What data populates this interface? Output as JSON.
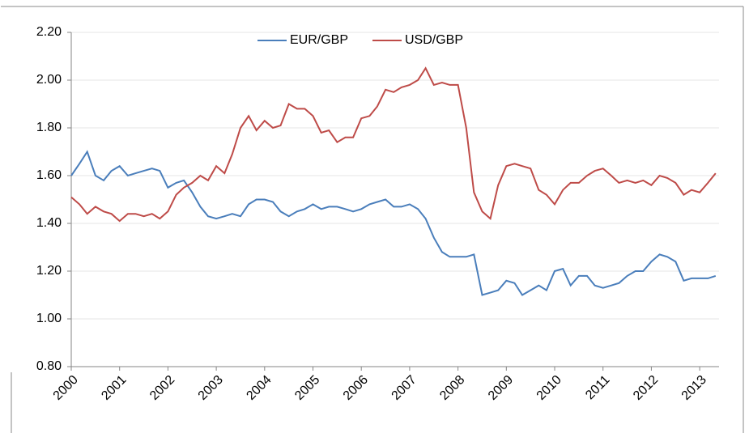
{
  "chart_data": {
    "type": "line",
    "x": [
      2000,
      2000.17,
      2000.33,
      2000.5,
      2000.67,
      2000.83,
      2001,
      2001.17,
      2001.33,
      2001.5,
      2001.67,
      2001.83,
      2002,
      2002.17,
      2002.33,
      2002.5,
      2002.67,
      2002.83,
      2003,
      2003.17,
      2003.33,
      2003.5,
      2003.67,
      2003.83,
      2004,
      2004.17,
      2004.33,
      2004.5,
      2004.67,
      2004.83,
      2005,
      2005.17,
      2005.33,
      2005.5,
      2005.67,
      2005.83,
      2006,
      2006.17,
      2006.33,
      2006.5,
      2006.67,
      2006.83,
      2007,
      2007.17,
      2007.33,
      2007.5,
      2007.67,
      2007.83,
      2008,
      2008.17,
      2008.33,
      2008.5,
      2008.67,
      2008.83,
      2009,
      2009.17,
      2009.33,
      2009.5,
      2009.67,
      2009.83,
      2010,
      2010.17,
      2010.33,
      2010.5,
      2010.67,
      2010.83,
      2011,
      2011.17,
      2011.33,
      2011.5,
      2011.67,
      2011.83,
      2012,
      2012.17,
      2012.33,
      2012.5,
      2012.67,
      2012.83,
      2013,
      2013.17,
      2013.33
    ],
    "series": [
      {
        "name": "EUR/GBP",
        "color": "#4a7ebb",
        "values": [
          1.6,
          1.65,
          1.7,
          1.6,
          1.58,
          1.62,
          1.64,
          1.6,
          1.61,
          1.62,
          1.63,
          1.62,
          1.55,
          1.57,
          1.58,
          1.53,
          1.47,
          1.43,
          1.42,
          1.43,
          1.44,
          1.43,
          1.48,
          1.5,
          1.5,
          1.49,
          1.45,
          1.43,
          1.45,
          1.46,
          1.48,
          1.46,
          1.47,
          1.47,
          1.46,
          1.45,
          1.46,
          1.48,
          1.49,
          1.5,
          1.47,
          1.47,
          1.48,
          1.46,
          1.42,
          1.34,
          1.28,
          1.26,
          1.26,
          1.26,
          1.27,
          1.1,
          1.11,
          1.12,
          1.16,
          1.15,
          1.1,
          1.12,
          1.14,
          1.12,
          1.2,
          1.21,
          1.14,
          1.18,
          1.18,
          1.14,
          1.13,
          1.14,
          1.15,
          1.18,
          1.2,
          1.2,
          1.24,
          1.27,
          1.26,
          1.24,
          1.16,
          1.17,
          1.17,
          1.17,
          1.18
        ]
      },
      {
        "name": "USD/GBP",
        "color": "#be4b48",
        "values": [
          1.51,
          1.48,
          1.44,
          1.47,
          1.45,
          1.44,
          1.41,
          1.44,
          1.44,
          1.43,
          1.44,
          1.42,
          1.45,
          1.52,
          1.55,
          1.57,
          1.6,
          1.58,
          1.64,
          1.61,
          1.69,
          1.8,
          1.85,
          1.79,
          1.83,
          1.8,
          1.81,
          1.9,
          1.88,
          1.88,
          1.85,
          1.78,
          1.79,
          1.74,
          1.76,
          1.76,
          1.84,
          1.85,
          1.89,
          1.96,
          1.95,
          1.97,
          1.98,
          2.0,
          2.05,
          1.98,
          1.99,
          1.98,
          1.98,
          1.8,
          1.53,
          1.45,
          1.42,
          1.56,
          1.64,
          1.65,
          1.64,
          1.63,
          1.54,
          1.52,
          1.48,
          1.54,
          1.57,
          1.57,
          1.6,
          1.62,
          1.63,
          1.6,
          1.57,
          1.58,
          1.57,
          1.58,
          1.56,
          1.6,
          1.59,
          1.57,
          1.52,
          1.54,
          1.53,
          1.57,
          1.61
        ]
      }
    ],
    "xlim": [
      2000,
      2013.4
    ],
    "xticks": [
      2000,
      2001,
      2002,
      2003,
      2004,
      2005,
      2006,
      2007,
      2008,
      2009,
      2010,
      2011,
      2012,
      2013
    ],
    "ylim": [
      0.8,
      2.2
    ],
    "yticks": [
      {
        "value": 0.8,
        "label": "0.80"
      },
      {
        "value": 1.0,
        "label": "1.00"
      },
      {
        "value": 1.2,
        "label": "1.20"
      },
      {
        "value": 1.4,
        "label": "1.40"
      },
      {
        "value": 1.6,
        "label": "1.60"
      },
      {
        "value": 1.8,
        "label": "1.80"
      },
      {
        "value": 2.0,
        "label": "2.00"
      },
      {
        "value": 2.2,
        "label": "2.20"
      }
    ],
    "grid": true,
    "legend": "top"
  }
}
